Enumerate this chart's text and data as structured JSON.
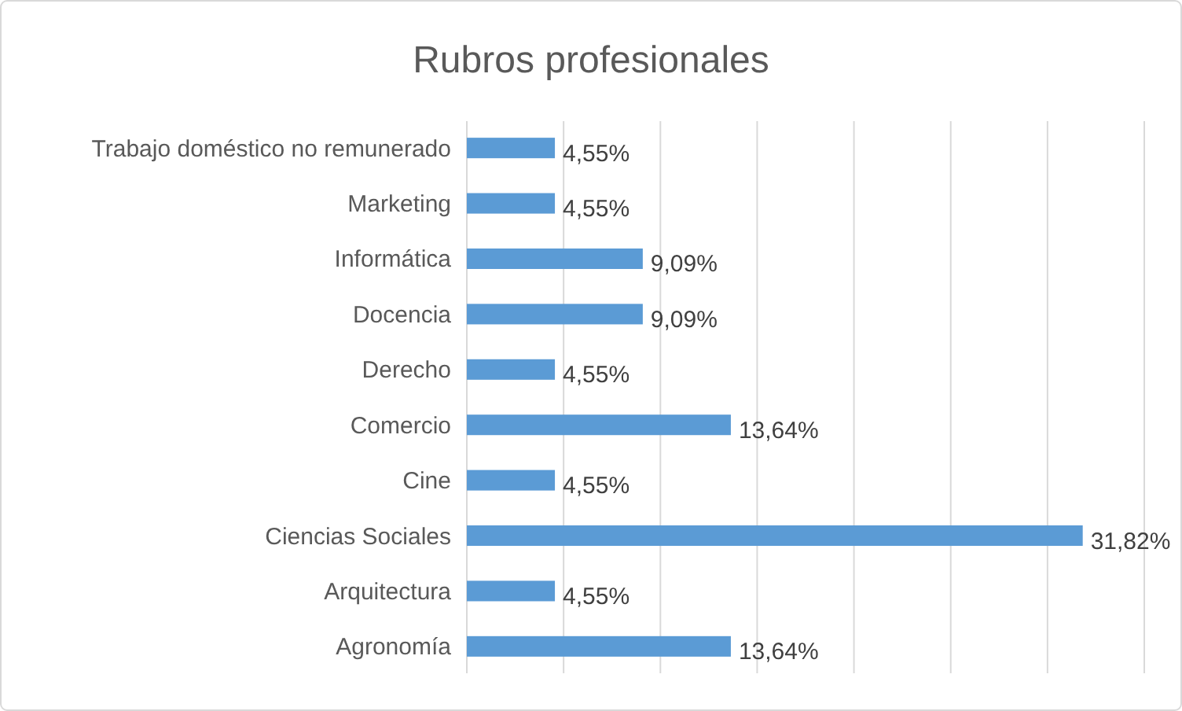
{
  "chart_data": {
    "type": "bar",
    "orientation": "horizontal",
    "title": "Rubros profesionales",
    "categories": [
      "Trabajo doméstico no remunerado",
      "Marketing",
      "Informática",
      "Docencia",
      "Derecho",
      "Comercio",
      "Cine",
      "Ciencias Sociales",
      "Arquitectura",
      "Agronomía"
    ],
    "values": [
      4.55,
      4.55,
      9.09,
      9.09,
      4.55,
      13.64,
      4.55,
      31.82,
      4.55,
      13.64
    ],
    "value_labels": [
      "4,55%",
      "4,55%",
      "9,09%",
      "9,09%",
      "4,55%",
      "13,64%",
      "4,55%",
      "31,82%",
      "4,55%",
      "13,64%"
    ],
    "color": "#5b9bd5",
    "xlim": [
      0,
      35
    ],
    "xticks": [
      {
        "value": 0,
        "label": null
      },
      {
        "value": 5,
        "label": null
      },
      {
        "value": 10,
        "label": null
      },
      {
        "value": 15,
        "label": null
      },
      {
        "value": 20,
        "label": null
      },
      {
        "value": 25,
        "label": null
      },
      {
        "value": 30,
        "label": null
      },
      {
        "value": 35,
        "label": null
      }
    ],
    "grid": "x",
    "tick_labels": "y"
  }
}
